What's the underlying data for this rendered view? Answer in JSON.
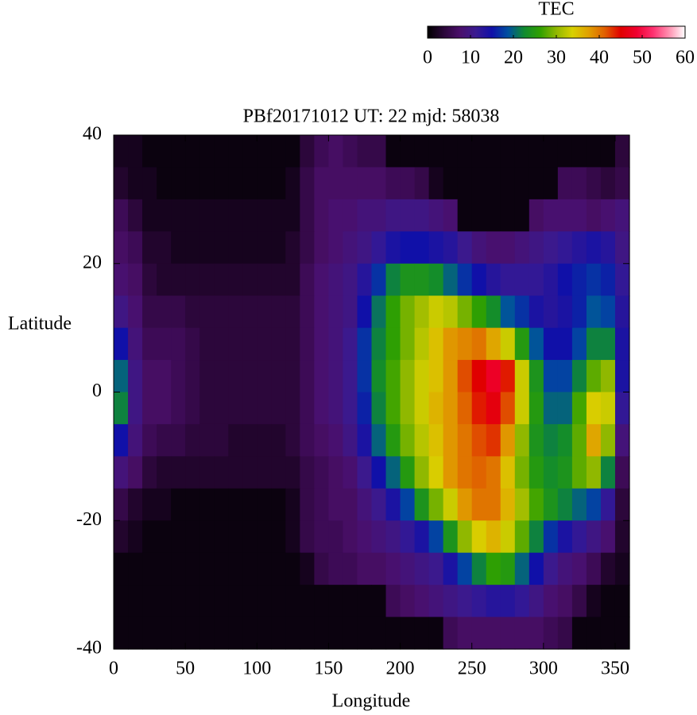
{
  "chart_data": {
    "type": "heatmap",
    "title": "PBf20171012  UT: 22  mjd: 58038",
    "xlabel": "Longitude",
    "ylabel": "Latitude",
    "colorbar_label": "TEC",
    "xlim": [
      0,
      360
    ],
    "xticks": [
      0,
      50,
      100,
      150,
      200,
      250,
      300,
      350
    ],
    "ylim": [
      -40,
      40
    ],
    "yticks": [
      -40,
      -20,
      0,
      20,
      40
    ],
    "zlim": [
      0,
      60
    ],
    "zticks": [
      0,
      10,
      20,
      30,
      40,
      50,
      60
    ],
    "colorscale": [
      "#000000",
      "#2a0638",
      "#4a0f6a",
      "#3a1a90",
      "#1010a8",
      "#0050a0",
      "#108a30",
      "#30a000",
      "#90b800",
      "#d8d000",
      "#e0a000",
      "#e06000",
      "#e00000",
      "#f00030",
      "#ff3070",
      "#ff90b0",
      "#ffffff"
    ],
    "x": [
      5,
      15,
      25,
      35,
      45,
      55,
      65,
      75,
      85,
      95,
      105,
      115,
      125,
      135,
      145,
      155,
      165,
      175,
      185,
      195,
      205,
      215,
      225,
      235,
      245,
      255,
      265,
      275,
      285,
      295,
      305,
      315,
      325,
      335,
      345,
      355
    ],
    "y": [
      37.5,
      32.5,
      27.5,
      22.5,
      17.5,
      12.5,
      7.5,
      2.5,
      -2.5,
      -7.5,
      -12.5,
      -17.5,
      -22.5,
      -27.5,
      -32.5,
      -37.5
    ],
    "z": [
      [
        2,
        2,
        1,
        1,
        1,
        1,
        1,
        1,
        1,
        1,
        1,
        1,
        1,
        4,
        6,
        7,
        6,
        5,
        5,
        1,
        1,
        1,
        1,
        1,
        1,
        1,
        1,
        1,
        1,
        1,
        1,
        1,
        1,
        1,
        1,
        4
      ],
      [
        3,
        2,
        2,
        1,
        1,
        1,
        1,
        1,
        1,
        1,
        1,
        1,
        2,
        5,
        7,
        7,
        7,
        7,
        7,
        6,
        6,
        5,
        2,
        1,
        1,
        1,
        1,
        1,
        1,
        1,
        1,
        6,
        6,
        5,
        4,
        5
      ],
      [
        6,
        4,
        2,
        2,
        2,
        2,
        2,
        2,
        2,
        2,
        2,
        2,
        2,
        5,
        7,
        8,
        8,
        9,
        9,
        10,
        10,
        10,
        9,
        8,
        1,
        1,
        1,
        1,
        1,
        7,
        8,
        8,
        8,
        7,
        8,
        9
      ],
      [
        7,
        6,
        3,
        3,
        2,
        2,
        2,
        2,
        2,
        2,
        2,
        2,
        3,
        5,
        7,
        8,
        9,
        10,
        12,
        14,
        15,
        15,
        14,
        13,
        11,
        9,
        8,
        8,
        9,
        10,
        11,
        12,
        13,
        14,
        13,
        10
      ],
      [
        8,
        7,
        4,
        3,
        3,
        3,
        3,
        3,
        3,
        3,
        3,
        3,
        3,
        6,
        8,
        9,
        10,
        13,
        17,
        22,
        24,
        24,
        23,
        20,
        17,
        15,
        13,
        12,
        12,
        12,
        13,
        15,
        16,
        17,
        16,
        12
      ],
      [
        10,
        8,
        5,
        5,
        5,
        4,
        4,
        4,
        4,
        4,
        4,
        4,
        4,
        6,
        8,
        9,
        10,
        15,
        21,
        26,
        29,
        31,
        33,
        32,
        29,
        26,
        23,
        19,
        17,
        14,
        13,
        14,
        16,
        19,
        18,
        13
      ],
      [
        15,
        9,
        6,
        6,
        6,
        5,
        4,
        4,
        4,
        4,
        4,
        4,
        4,
        6,
        8,
        9,
        11,
        17,
        22,
        26,
        29,
        32,
        35,
        38,
        39,
        40,
        37,
        33,
        25,
        19,
        15,
        15,
        18,
        22,
        22,
        14
      ],
      [
        20,
        10,
        7,
        7,
        6,
        5,
        4,
        4,
        4,
        4,
        4,
        4,
        4,
        6,
        8,
        9,
        11,
        17,
        23,
        27,
        30,
        33,
        35,
        38,
        42,
        45,
        48,
        44,
        33,
        24,
        18,
        18,
        22,
        28,
        30,
        14
      ],
      [
        22,
        10,
        7,
        7,
        6,
        5,
        4,
        4,
        4,
        4,
        4,
        4,
        4,
        6,
        8,
        9,
        11,
        16,
        22,
        27,
        30,
        33,
        36,
        38,
        41,
        44,
        46,
        42,
        33,
        25,
        20,
        20,
        27,
        34,
        33,
        12
      ],
      [
        15,
        9,
        6,
        5,
        5,
        4,
        4,
        4,
        3,
        3,
        3,
        3,
        4,
        6,
        7,
        8,
        10,
        14,
        20,
        25,
        29,
        32,
        35,
        38,
        40,
        42,
        43,
        38,
        30,
        24,
        22,
        23,
        28,
        37,
        30,
        9
      ],
      [
        9,
        7,
        4,
        3,
        3,
        3,
        3,
        3,
        3,
        3,
        3,
        3,
        3,
        5,
        6,
        7,
        8,
        11,
        15,
        20,
        25,
        30,
        34,
        38,
        40,
        41,
        40,
        35,
        29,
        25,
        23,
        24,
        28,
        30,
        22,
        6
      ],
      [
        5,
        3,
        2,
        2,
        1,
        1,
        1,
        1,
        1,
        1,
        1,
        1,
        2,
        5,
        6,
        7,
        7,
        9,
        11,
        14,
        18,
        24,
        29,
        33,
        38,
        40,
        40,
        36,
        31,
        27,
        24,
        22,
        20,
        18,
        12,
        4
      ],
      [
        3,
        2,
        1,
        1,
        1,
        1,
        1,
        1,
        1,
        1,
        1,
        1,
        2,
        5,
        6,
        6,
        7,
        8,
        9,
        10,
        12,
        14,
        18,
        24,
        30,
        34,
        36,
        33,
        28,
        22,
        17,
        14,
        12,
        10,
        8,
        3
      ],
      [
        1,
        1,
        1,
        1,
        1,
        1,
        1,
        1,
        1,
        1,
        1,
        1,
        1,
        2,
        5,
        6,
        6,
        7,
        7,
        8,
        9,
        10,
        11,
        14,
        18,
        22,
        26,
        25,
        20,
        15,
        11,
        9,
        8,
        6,
        3,
        2
      ],
      [
        1,
        1,
        1,
        1,
        1,
        1,
        1,
        1,
        1,
        1,
        1,
        1,
        1,
        1,
        1,
        1,
        1,
        1,
        1,
        6,
        7,
        8,
        9,
        10,
        11,
        12,
        13,
        13,
        12,
        10,
        8,
        7,
        5,
        2,
        1,
        1
      ],
      [
        1,
        1,
        1,
        1,
        1,
        1,
        1,
        1,
        1,
        1,
        1,
        1,
        1,
        1,
        1,
        1,
        1,
        1,
        1,
        1,
        1,
        1,
        1,
        6,
        7,
        7,
        7,
        7,
        7,
        7,
        6,
        5,
        1,
        1,
        1,
        1
      ]
    ]
  }
}
